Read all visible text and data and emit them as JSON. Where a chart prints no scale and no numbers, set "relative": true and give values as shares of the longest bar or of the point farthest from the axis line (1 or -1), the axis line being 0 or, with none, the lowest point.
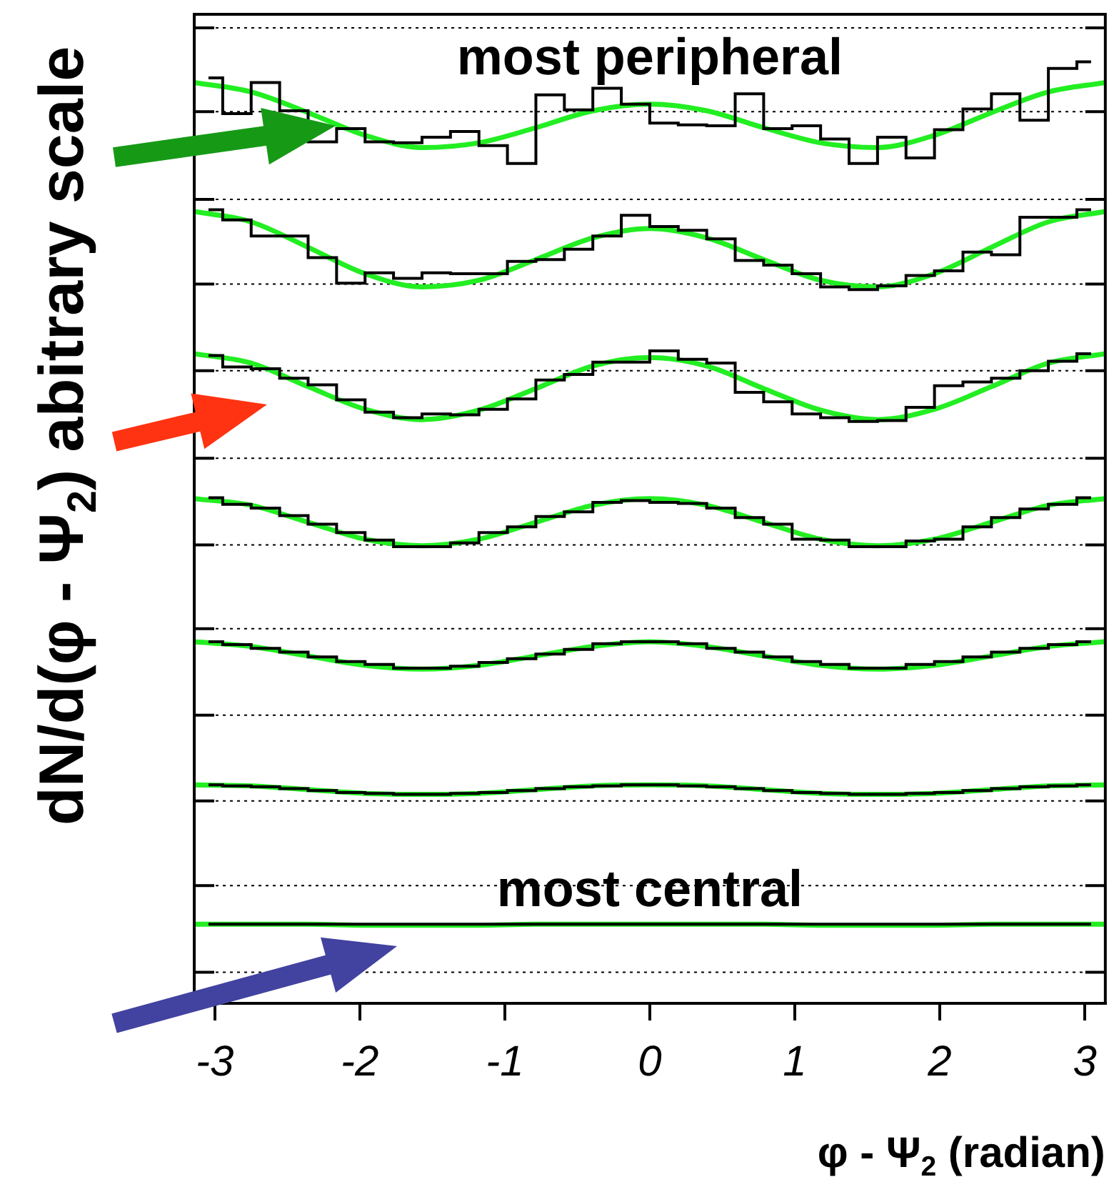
{
  "chart_data": {
    "type": "step",
    "relative": true,
    "marker": "none",
    "xlabel": "φ - Ψ$_{2}$ (radian)",
    "ylabel": "dN/d(φ - Ψ$_{2}$) abitrary scale",
    "xlim": [
      -3.1416,
      3.1416
    ],
    "xticks": [
      -3,
      -2,
      -1,
      0,
      1,
      2,
      3
    ],
    "x": [
      -3.0434,
      -2.8471,
      -2.6507,
      -2.4544,
      -2.258,
      -2.0617,
      -1.8653,
      -1.669,
      -1.4726,
      -1.2763,
      -1.0799,
      -0.8836,
      -0.6872,
      -0.4909,
      -0.2945,
      -0.0982,
      0.0982,
      0.2945,
      0.4909,
      0.6872,
      0.8836,
      1.0799,
      1.2763,
      1.4726,
      1.669,
      1.8653,
      2.0617,
      2.258,
      2.4544,
      2.6507,
      2.8471,
      3.0434
    ],
    "series": [
      {
        "color": "#000000",
        "values": [
          0.983,
          0.945,
          0.978,
          0.948,
          0.915,
          0.929,
          0.915,
          0.914,
          0.92,
          0.926,
          0.911,
          0.892,
          0.965,
          0.949,
          0.972,
          0.955,
          0.935,
          0.933,
          0.932,
          0.966,
          0.929,
          0.932,
          0.918,
          0.892,
          0.92,
          0.898,
          0.928,
          0.95,
          0.966,
          0.938,
          0.993,
          1.0
        ]
      },
      {
        "color": "#000000",
        "values": [
          0.843,
          0.832,
          0.815,
          0.815,
          0.792,
          0.765,
          0.776,
          0.77,
          0.776,
          0.775,
          0.775,
          0.788,
          0.79,
          0.801,
          0.815,
          0.837,
          0.825,
          0.821,
          0.812,
          0.789,
          0.784,
          0.775,
          0.761,
          0.758,
          0.762,
          0.773,
          0.778,
          0.798,
          0.795,
          0.835,
          0.835,
          0.843
        ]
      },
      {
        "color": "#000000",
        "values": [
          0.688,
          0.676,
          0.674,
          0.664,
          0.657,
          0.641,
          0.628,
          0.622,
          0.626,
          0.625,
          0.631,
          0.642,
          0.662,
          0.668,
          0.681,
          0.681,
          0.693,
          0.684,
          0.68,
          0.649,
          0.639,
          0.626,
          0.622,
          0.618,
          0.619,
          0.633,
          0.656,
          0.66,
          0.664,
          0.672,
          0.682,
          0.69
        ]
      },
      {
        "color": "#000000",
        "values": [
          0.537,
          0.53,
          0.526,
          0.518,
          0.509,
          0.5,
          0.492,
          0.485,
          0.485,
          0.489,
          0.5,
          0.506,
          0.517,
          0.522,
          0.532,
          0.534,
          0.532,
          0.531,
          0.526,
          0.516,
          0.509,
          0.493,
          0.492,
          0.485,
          0.485,
          0.491,
          0.493,
          0.506,
          0.516,
          0.525,
          0.53,
          0.537
        ]
      },
      {
        "color": "#000000",
        "values": [
          0.384,
          0.381,
          0.377,
          0.373,
          0.368,
          0.363,
          0.36,
          0.356,
          0.356,
          0.358,
          0.362,
          0.366,
          0.371,
          0.376,
          0.382,
          0.384,
          0.384,
          0.382,
          0.377,
          0.373,
          0.368,
          0.363,
          0.36,
          0.356,
          0.356,
          0.36,
          0.363,
          0.368,
          0.373,
          0.377,
          0.381,
          0.384
        ]
      },
      {
        "color": "#000000",
        "values": [
          0.232,
          0.231,
          0.23,
          0.228,
          0.226,
          0.224,
          0.223,
          0.222,
          0.222,
          0.223,
          0.224,
          0.226,
          0.228,
          0.23,
          0.231,
          0.232,
          0.232,
          0.231,
          0.23,
          0.228,
          0.226,
          0.224,
          0.223,
          0.222,
          0.222,
          0.223,
          0.224,
          0.226,
          0.228,
          0.23,
          0.231,
          0.232
        ]
      },
      {
        "color": "#000000",
        "values": [
          0.084,
          0.084,
          0.084,
          0.084,
          0.084,
          0.084,
          0.084,
          0.084,
          0.084,
          0.084,
          0.084,
          0.084,
          0.084,
          0.084,
          0.084,
          0.084,
          0.084,
          0.084,
          0.084,
          0.084,
          0.084,
          0.084,
          0.084,
          0.084,
          0.084,
          0.084,
          0.084,
          0.084,
          0.084,
          0.084,
          0.084,
          0.084
        ]
      },
      {
        "type": "line",
        "color": "#22ee22",
        "x": [
          -3.1416,
          -2.7489,
          -2.3562,
          -1.9635,
          -1.5708,
          -1.1781,
          -0.7854,
          -0.3927,
          0,
          0.3927,
          0.7854,
          1.1781,
          1.5708,
          1.9635,
          2.3562,
          2.7489,
          3.1416
        ],
        "values": [
          0.978,
          0.968,
          0.946,
          0.922,
          0.909,
          0.914,
          0.93,
          0.948,
          0.955,
          0.948,
          0.93,
          0.914,
          0.909,
          0.922,
          0.946,
          0.968,
          0.978
        ]
      },
      {
        "type": "line",
        "color": "#22ee22",
        "x": [
          -3.1416,
          -2.7489,
          -2.3562,
          -1.9635,
          -1.5708,
          -1.1781,
          -0.7854,
          -0.3927,
          0,
          0.3927,
          0.7854,
          1.1781,
          1.5708,
          1.9635,
          2.3562,
          2.7489,
          3.1416
        ],
        "values": [
          0.841,
          0.83,
          0.803,
          0.775,
          0.761,
          0.768,
          0.79,
          0.813,
          0.823,
          0.813,
          0.79,
          0.768,
          0.761,
          0.775,
          0.803,
          0.83,
          0.841
        ]
      },
      {
        "type": "line",
        "color": "#22ee22",
        "x": [
          -3.1416,
          -2.7489,
          -2.3562,
          -1.9635,
          -1.5708,
          -1.1781,
          -0.7854,
          -0.3927,
          0,
          0.3927,
          0.7854,
          1.1781,
          1.5708,
          1.9635,
          2.3562,
          2.7489,
          3.1416
        ],
        "values": [
          0.69,
          0.68,
          0.655,
          0.631,
          0.62,
          0.63,
          0.653,
          0.677,
          0.686,
          0.677,
          0.653,
          0.63,
          0.62,
          0.631,
          0.655,
          0.68,
          0.69
        ]
      },
      {
        "type": "line",
        "color": "#22ee22",
        "x": [
          -3.1416,
          -2.7489,
          -2.3562,
          -1.9635,
          -1.5708,
          -1.1781,
          -0.7854,
          -0.3927,
          0,
          0.3927,
          0.7854,
          1.1781,
          1.5708,
          1.9635,
          2.3562,
          2.7489,
          3.1416
        ],
        "values": [
          0.536,
          0.529,
          0.511,
          0.493,
          0.486,
          0.493,
          0.511,
          0.529,
          0.536,
          0.529,
          0.511,
          0.493,
          0.486,
          0.493,
          0.511,
          0.529,
          0.536
        ]
      },
      {
        "type": "line",
        "color": "#22ee22",
        "x": [
          -3.1416,
          -2.7489,
          -2.3562,
          -1.9635,
          -1.5708,
          -1.1781,
          -0.7854,
          -0.3927,
          0,
          0.3927,
          0.7854,
          1.1781,
          1.5708,
          1.9635,
          2.3562,
          2.7489,
          3.1416
        ],
        "values": [
          0.384,
          0.379,
          0.369,
          0.359,
          0.355,
          0.359,
          0.369,
          0.379,
          0.384,
          0.379,
          0.369,
          0.359,
          0.355,
          0.359,
          0.369,
          0.379,
          0.384
        ]
      },
      {
        "type": "line",
        "color": "#22ee22",
        "x": [
          -3.1416,
          -2.7489,
          -2.3562,
          -1.9635,
          -1.5708,
          -1.1781,
          -0.7854,
          -0.3927,
          0,
          0.3927,
          0.7854,
          1.1781,
          1.5708,
          1.9635,
          2.3562,
          2.7489,
          3.1416
        ],
        "values": [
          0.232,
          0.231,
          0.227,
          0.223,
          0.222,
          0.223,
          0.227,
          0.231,
          0.232,
          0.231,
          0.227,
          0.223,
          0.222,
          0.223,
          0.227,
          0.231,
          0.232
        ]
      },
      {
        "type": "line",
        "color": "#22ee22",
        "x": [
          -3.1416,
          -2.7489,
          -2.3562,
          -1.9635,
          -1.5708,
          -1.1781,
          -0.7854,
          -0.3927,
          0,
          0.3927,
          0.7854,
          1.1781,
          1.5708,
          1.9635,
          2.3562,
          2.7489,
          3.1416
        ],
        "values": [
          0.084,
          0.084,
          0.084,
          0.083,
          0.083,
          0.083,
          0.084,
          0.084,
          0.084,
          0.084,
          0.084,
          0.083,
          0.083,
          0.083,
          0.084,
          0.084,
          0.084
        ]
      }
    ],
    "ref_lines": [
      {
        "axis": "y",
        "value": 1.036,
        "line_style": "dotted"
      },
      {
        "axis": "y",
        "value": 0.947,
        "line_style": "dotted"
      },
      {
        "axis": "y",
        "value": 0.854,
        "line_style": "dotted"
      },
      {
        "axis": "y",
        "value": 0.764,
        "line_style": "dotted"
      },
      {
        "axis": "y",
        "value": 0.672,
        "line_style": "dotted"
      },
      {
        "axis": "y",
        "value": 0.579,
        "line_style": "dotted"
      },
      {
        "axis": "y",
        "value": 0.487,
        "line_style": "dotted"
      },
      {
        "axis": "y",
        "value": 0.398,
        "line_style": "dotted"
      },
      {
        "axis": "y",
        "value": 0.306,
        "line_style": "dotted"
      },
      {
        "axis": "y",
        "value": 0.215,
        "line_style": "dotted"
      },
      {
        "axis": "y",
        "value": 0.125,
        "line_style": "dotted"
      },
      {
        "axis": "y",
        "value": 0.033,
        "line_style": "dotted"
      }
    ],
    "annotations": [
      "most peripheral",
      "most central"
    ]
  }
}
